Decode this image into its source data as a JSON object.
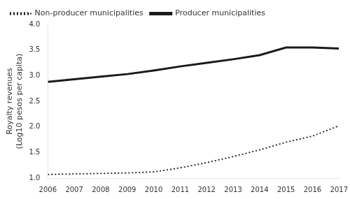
{
  "chart_data": {
    "type": "line",
    "y_label": [
      "Royalty revenues",
      "(Log10 pesos per capita)"
    ],
    "x": [
      2006,
      2007,
      2008,
      2009,
      2010,
      2011,
      2012,
      2013,
      2014,
      2015,
      2016,
      2017
    ],
    "series": [
      {
        "name": "Non-producer municipalities",
        "color": "#1a1a1a",
        "line_style": "dotted",
        "values": [
          1.07,
          1.08,
          1.09,
          1.1,
          1.12,
          1.2,
          1.3,
          1.42,
          1.55,
          1.7,
          1.82,
          2.02
        ]
      },
      {
        "name": "Producer municipalities",
        "color": "#1a1a1a",
        "line_style": "solid",
        "values": [
          2.88,
          2.93,
          2.98,
          3.03,
          3.1,
          3.18,
          3.25,
          3.32,
          3.4,
          3.55,
          3.55,
          3.53
        ]
      }
    ],
    "xlim": [
      2006,
      2017
    ],
    "xticks": [
      2006,
      2007,
      2008,
      2009,
      2010,
      2011,
      2012,
      2013,
      2014,
      2015,
      2016,
      2017
    ],
    "ylim": [
      1.0,
      4.0
    ],
    "yticks": [
      {
        "value": 1.0,
        "label": "1.0"
      },
      1.5,
      {
        "value": 2.0,
        "label": "2.0"
      },
      2.5,
      {
        "value": 3.0,
        "label": "3.0"
      },
      3.5,
      {
        "value": 4.0,
        "label": "4.0"
      }
    ],
    "grid": false,
    "legend": "upper left"
  }
}
